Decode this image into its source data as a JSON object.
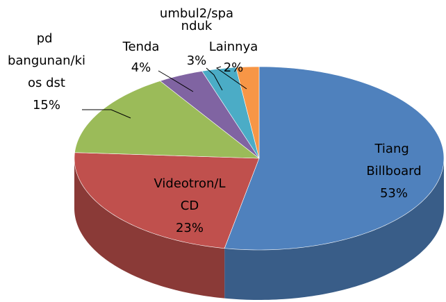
{
  "chart_data": {
    "type": "pie",
    "categories": [
      "Tiang Billboard",
      "Videotron/LCD",
      "pd bangunan/kios dst",
      "Tenda",
      "umbul2/spanduk",
      "Lainnya"
    ],
    "values": [
      53,
      23,
      15,
      4,
      3,
      2
    ],
    "value_labels": [
      "53%",
      "23%",
      "15%",
      "4%",
      "3%",
      "2%"
    ],
    "colors": [
      "#4f81bd",
      "#c0504d",
      "#9bbb59",
      "#8064a2",
      "#4bacc6",
      "#f79646"
    ]
  }
}
